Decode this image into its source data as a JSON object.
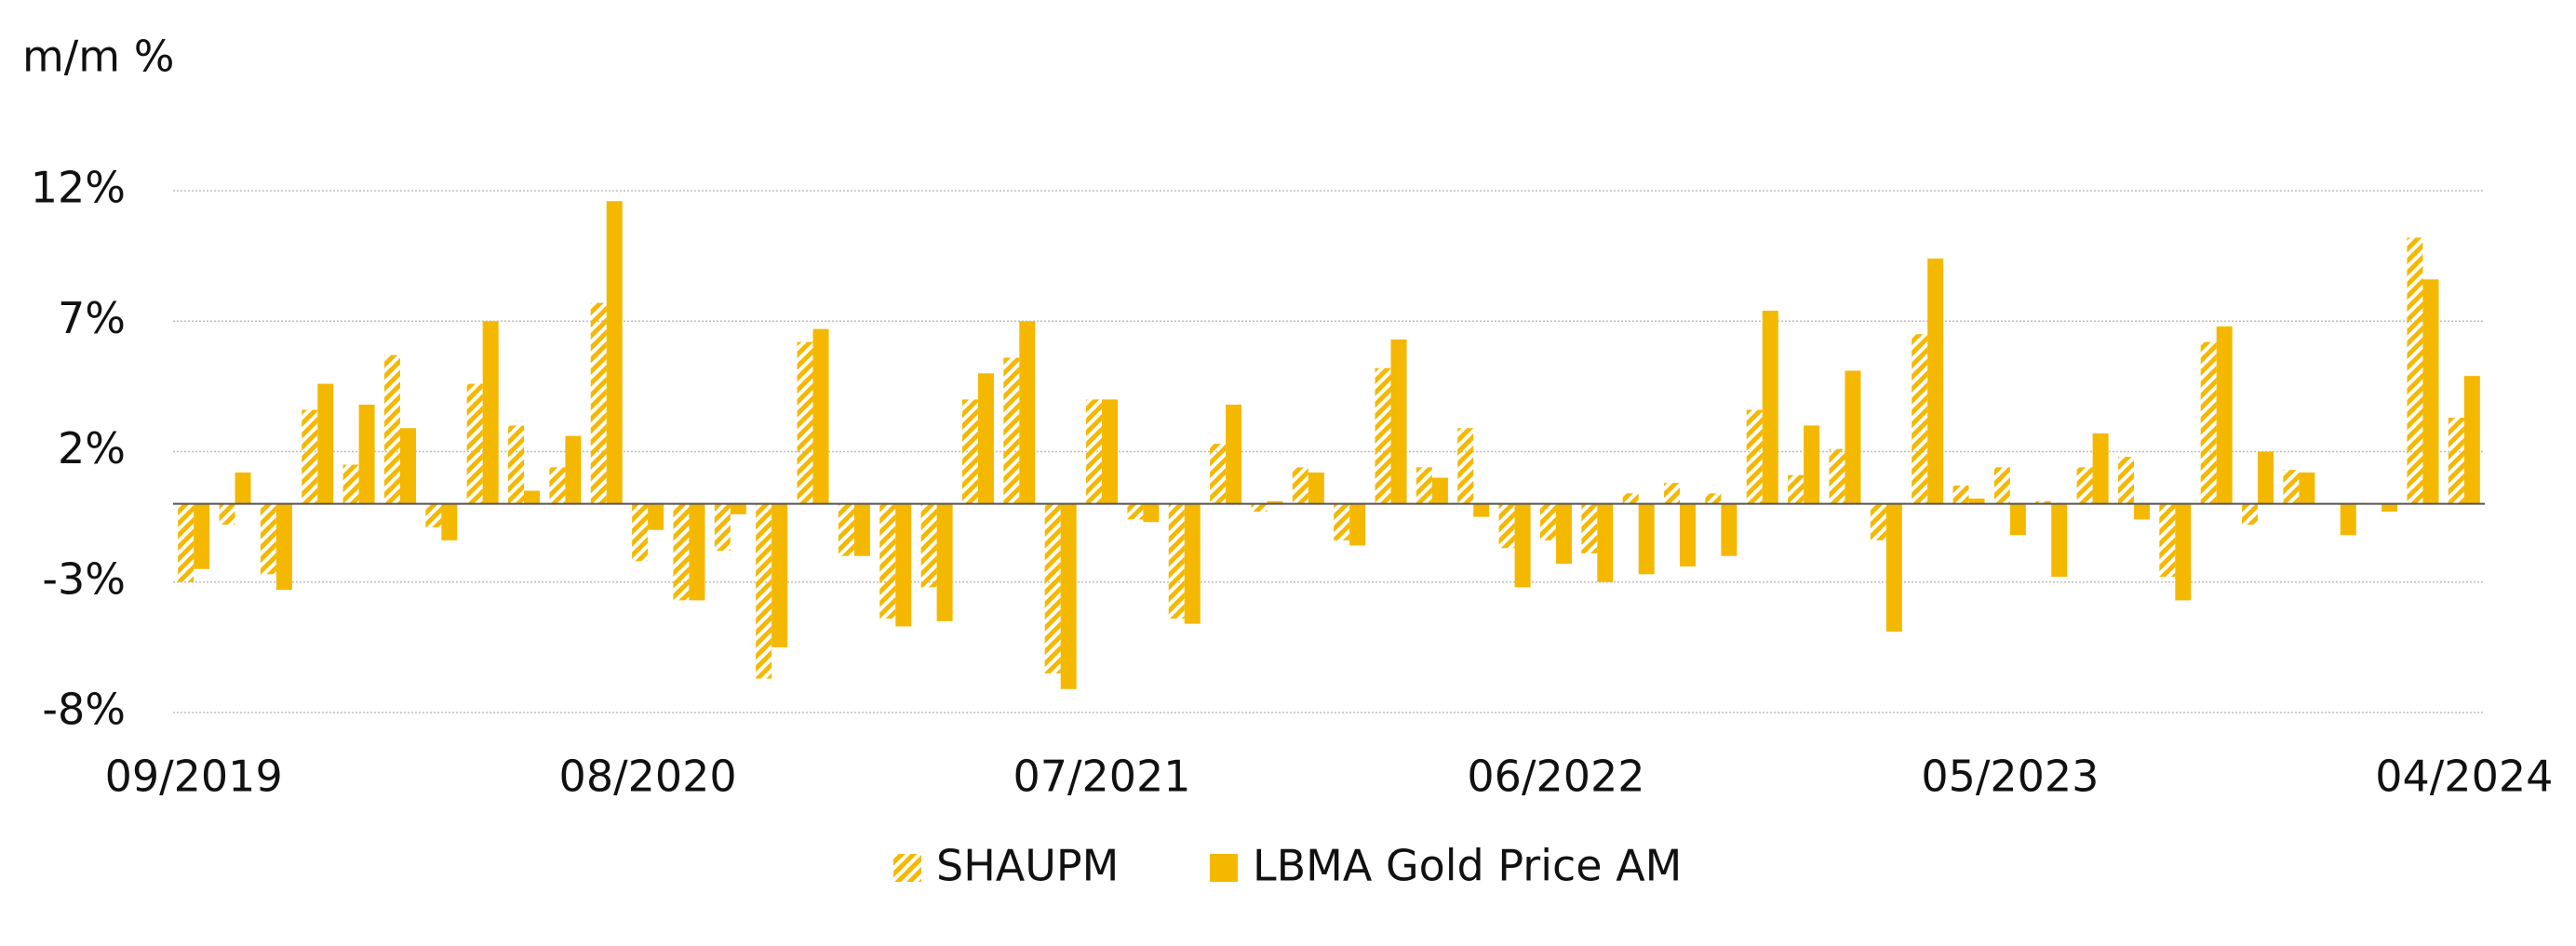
{
  "chart_data": {
    "type": "bar",
    "y_label": "m/m %",
    "categories": [
      "09/2019",
      null,
      null,
      null,
      null,
      null,
      null,
      null,
      null,
      null,
      null,
      "08/2020",
      null,
      null,
      null,
      null,
      null,
      null,
      null,
      null,
      null,
      null,
      "07/2021",
      null,
      null,
      null,
      null,
      null,
      null,
      null,
      null,
      null,
      null,
      "06/2022",
      null,
      null,
      null,
      null,
      null,
      null,
      null,
      null,
      null,
      null,
      "05/2023",
      null,
      null,
      null,
      null,
      null,
      null,
      null,
      null,
      null,
      null,
      "04/2024"
    ],
    "series": [
      {
        "name": "SHAUPM",
        "color": "#f5b800",
        "hatch": true,
        "values": [
          -3.0,
          -0.8,
          -2.7,
          3.6,
          1.5,
          5.7,
          -0.9,
          4.6,
          3.0,
          1.4,
          7.7,
          -2.2,
          -3.7,
          -1.8,
          -6.7,
          6.2,
          -2.0,
          -4.4,
          -3.2,
          4.0,
          5.6,
          -6.5,
          4.0,
          -0.6,
          -4.4,
          2.3,
          -0.3,
          1.4,
          -1.4,
          5.2,
          1.4,
          2.9,
          -1.7,
          -1.4,
          -1.9,
          0.4,
          0.8,
          0.4,
          3.6,
          1.1,
          2.1,
          -1.4,
          6.5,
          0.7,
          1.4,
          0.1,
          1.4,
          1.8,
          -2.8,
          6.2,
          -0.8,
          1.3,
          0.0,
          0.0,
          10.2,
          3.3
        ]
      },
      {
        "name": "LBMA Gold Price AM",
        "color": "#f5b800",
        "hatch": false,
        "values": [
          -2.5,
          1.2,
          -3.3,
          4.6,
          3.8,
          2.9,
          -1.4,
          7.0,
          0.5,
          2.6,
          11.6,
          -1.0,
          -3.7,
          -0.4,
          -5.5,
          6.7,
          -2.0,
          -4.7,
          -4.5,
          5.0,
          7.0,
          -7.1,
          4.0,
          -0.7,
          -4.6,
          3.8,
          0.1,
          1.2,
          -1.6,
          6.3,
          1.0,
          -0.5,
          -3.2,
          -2.3,
          -3.0,
          -2.7,
          -2.4,
          -2.0,
          7.4,
          3.0,
          5.1,
          -4.9,
          9.4,
          0.2,
          -1.2,
          -2.8,
          2.7,
          -0.6,
          -3.7,
          6.8,
          2.0,
          1.2,
          -1.2,
          -0.3,
          8.6,
          4.9
        ]
      }
    ],
    "ylim": [
      -8,
      12
    ],
    "yticks": [
      {
        "value": -8,
        "label": "-8%"
      },
      {
        "value": -3,
        "label": "-3%"
      },
      {
        "value": 2,
        "label": "2%"
      },
      {
        "value": 7,
        "label": "7%"
      },
      {
        "value": 12,
        "label": "12%"
      }
    ],
    "grid": true,
    "legend": "bottom"
  }
}
